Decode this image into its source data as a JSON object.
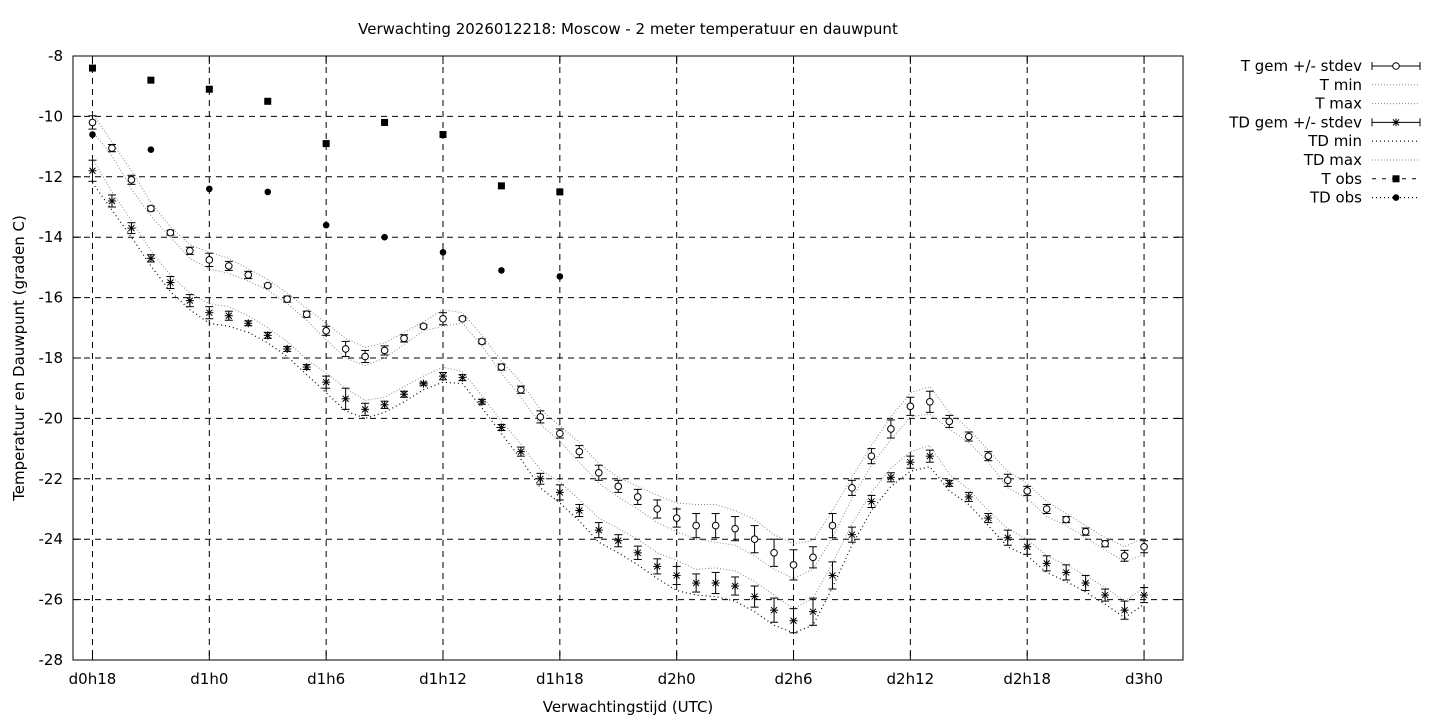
{
  "chart_data": {
    "type": "line",
    "title": "Verwachting 2026012218: Moscow - 2 meter temperatuur en dauwpunt",
    "xlabel": "Verwachtingstijd (UTC)",
    "ylabel": "Temperatuur en Dauwpunt (graden C)",
    "ylim": [
      -28,
      -8
    ],
    "xlim": [
      -1,
      56
    ],
    "yticks": [
      -8,
      -10,
      -12,
      -14,
      -16,
      -18,
      -20,
      -22,
      -24,
      -26,
      -28
    ],
    "xticks": [
      {
        "x": 0,
        "label": "d0h18"
      },
      {
        "x": 6,
        "label": "d1h0"
      },
      {
        "x": 12,
        "label": "d1h6"
      },
      {
        "x": 18,
        "label": "d1h12"
      },
      {
        "x": 24,
        "label": "d1h18"
      },
      {
        "x": 30,
        "label": "d2h0"
      },
      {
        "x": 36,
        "label": "d2h6"
      },
      {
        "x": 42,
        "label": "d2h12"
      },
      {
        "x": 48,
        "label": "d2h18"
      },
      {
        "x": 54,
        "label": "d3h0"
      }
    ],
    "grid": true,
    "legend_position": "outside-top-right",
    "legend": [
      {
        "label": "T gem +/- stdev",
        "marker": "circle",
        "style": "errorbar"
      },
      {
        "label": "T min",
        "marker": "none",
        "style": "dotted"
      },
      {
        "label": "T max",
        "marker": "none",
        "style": "dotted"
      },
      {
        "label": "TD gem +/- stdev",
        "marker": "star",
        "style": "errorbar"
      },
      {
        "label": "TD min",
        "marker": "none",
        "style": "dotted-dark"
      },
      {
        "label": "TD max",
        "marker": "none",
        "style": "dotted"
      },
      {
        "label": "T obs",
        "marker": "square",
        "style": "dashed"
      },
      {
        "label": "TD obs",
        "marker": "dot",
        "style": "dotted-dark"
      }
    ],
    "x": [
      0,
      1,
      2,
      3,
      4,
      5,
      6,
      7,
      8,
      9,
      10,
      11,
      12,
      13,
      14,
      15,
      16,
      17,
      18,
      19,
      20,
      21,
      22,
      23,
      24,
      25,
      26,
      27,
      28,
      29,
      30,
      31,
      32,
      33,
      34,
      35,
      36,
      37,
      38,
      39,
      40,
      41,
      42,
      43,
      44,
      45,
      46,
      47,
      48,
      49,
      50,
      51,
      52,
      53,
      54
    ],
    "series": [
      {
        "name": "T gem +/- stdev",
        "values": [
          -10.2,
          -11.05,
          -12.1,
          -13.05,
          -13.85,
          -14.45,
          -14.75,
          -14.95,
          -15.25,
          -15.6,
          -16.05,
          -16.55,
          -17.1,
          -17.7,
          -17.95,
          -17.75,
          -17.35,
          -16.95,
          -16.7,
          -16.7,
          -17.45,
          -18.3,
          -19.05,
          -19.95,
          -20.5,
          -21.1,
          -21.8,
          -22.25,
          -22.6,
          -23.0,
          -23.3,
          -23.55,
          -23.55,
          -23.65,
          -24.0,
          -24.45,
          -24.85,
          -24.6,
          -23.55,
          -22.3,
          -21.25,
          -20.35,
          -19.6,
          -19.45,
          -20.1,
          -20.6,
          -21.25,
          -22.05,
          -22.4,
          -23.0,
          -23.35,
          -23.75,
          -24.15,
          -24.55,
          -24.25
        ],
        "stdev": [
          0.22,
          0.12,
          0.15,
          0.08,
          0.08,
          0.12,
          0.22,
          0.15,
          0.12,
          0.05,
          0.1,
          0.1,
          0.15,
          0.25,
          0.2,
          0.15,
          0.12,
          0.05,
          0.2,
          0.05,
          0.08,
          0.1,
          0.12,
          0.2,
          0.15,
          0.2,
          0.25,
          0.2,
          0.25,
          0.3,
          0.3,
          0.4,
          0.4,
          0.4,
          0.45,
          0.45,
          0.5,
          0.35,
          0.4,
          0.25,
          0.25,
          0.3,
          0.3,
          0.35,
          0.2,
          0.15,
          0.15,
          0.2,
          0.15,
          0.15,
          0.1,
          0.12,
          0.1,
          0.18,
          0.2
        ]
      },
      {
        "name": "T min",
        "values": [
          -10.5,
          -11.3,
          -12.4,
          -13.3,
          -14.0,
          -14.7,
          -15.05,
          -15.2,
          -15.45,
          -15.75,
          -16.2,
          -16.75,
          -17.4,
          -18.0,
          -18.25,
          -18.0,
          -17.55,
          -17.1,
          -16.95,
          -16.85,
          -17.6,
          -18.5,
          -19.3,
          -20.2,
          -20.75,
          -21.45,
          -22.15,
          -22.6,
          -23.0,
          -23.45,
          -23.75,
          -24.0,
          -24.1,
          -24.2,
          -24.55,
          -25.0,
          -25.3,
          -25.0,
          -23.95,
          -22.65,
          -21.55,
          -20.7,
          -19.95,
          -19.85,
          -20.35,
          -20.8,
          -21.45,
          -22.3,
          -22.65,
          -23.25,
          -23.55,
          -23.95,
          -24.35,
          -24.75,
          -24.5
        ]
      },
      {
        "name": "T max",
        "values": [
          -9.9,
          -10.85,
          -11.8,
          -12.85,
          -13.65,
          -14.25,
          -14.5,
          -14.7,
          -15.05,
          -15.4,
          -15.85,
          -16.35,
          -16.85,
          -17.35,
          -17.65,
          -17.5,
          -17.15,
          -16.8,
          -16.4,
          -16.5,
          -17.25,
          -18.1,
          -18.8,
          -19.7,
          -20.25,
          -20.8,
          -21.5,
          -21.95,
          -22.25,
          -22.55,
          -22.8,
          -22.85,
          -22.85,
          -23.05,
          -23.35,
          -23.85,
          -24.15,
          -24.05,
          -23.05,
          -21.95,
          -20.9,
          -19.95,
          -19.15,
          -18.95,
          -19.8,
          -20.35,
          -21.05,
          -21.75,
          -22.15,
          -22.75,
          -23.15,
          -23.55,
          -23.95,
          -24.25,
          -23.95
        ]
      },
      {
        "name": "TD gem +/- stdev",
        "values": [
          -11.8,
          -12.8,
          -13.7,
          -14.7,
          -15.5,
          -16.1,
          -16.5,
          -16.6,
          -16.85,
          -17.25,
          -17.7,
          -18.3,
          -18.8,
          -19.35,
          -19.7,
          -19.55,
          -19.2,
          -18.85,
          -18.6,
          -18.65,
          -19.45,
          -20.3,
          -21.1,
          -22.0,
          -22.45,
          -23.05,
          -23.7,
          -24.05,
          -24.45,
          -24.9,
          -25.2,
          -25.45,
          -25.45,
          -25.55,
          -25.9,
          -26.35,
          -26.7,
          -26.4,
          -25.2,
          -23.85,
          -22.75,
          -21.95,
          -21.45,
          -21.25,
          -22.15,
          -22.6,
          -23.3,
          -23.95,
          -24.25,
          -24.8,
          -25.1,
          -25.45,
          -25.85,
          -26.35,
          -25.85
        ]
      },
      {
        "name": "TD min",
        "values": [
          -12.2,
          -13.1,
          -14.0,
          -14.95,
          -15.8,
          -16.4,
          -16.85,
          -16.95,
          -17.15,
          -17.5,
          -17.95,
          -18.55,
          -19.15,
          -19.75,
          -20.0,
          -19.8,
          -19.45,
          -19.05,
          -18.8,
          -18.85,
          -19.65,
          -20.5,
          -21.35,
          -22.3,
          -22.8,
          -23.4,
          -24.1,
          -24.45,
          -24.85,
          -25.3,
          -25.7,
          -25.85,
          -25.9,
          -26.05,
          -26.4,
          -26.85,
          -27.1,
          -26.85,
          -25.6,
          -24.2,
          -23.05,
          -22.25,
          -21.75,
          -21.6,
          -22.4,
          -22.85,
          -23.55,
          -24.25,
          -24.55,
          -25.1,
          -25.4,
          -25.75,
          -26.15,
          -26.6,
          -26.15
        ]
      },
      {
        "name": "TD max",
        "values": [
          -11.4,
          -12.5,
          -13.45,
          -14.45,
          -15.25,
          -15.85,
          -16.2,
          -16.3,
          -16.6,
          -17.0,
          -17.45,
          -18.05,
          -18.5,
          -19.0,
          -19.4,
          -19.3,
          -18.95,
          -18.6,
          -18.3,
          -18.45,
          -19.25,
          -20.1,
          -20.85,
          -21.7,
          -22.1,
          -22.7,
          -23.3,
          -23.65,
          -24.0,
          -24.45,
          -24.7,
          -25.0,
          -24.95,
          -25.05,
          -25.4,
          -25.85,
          -26.3,
          -25.95,
          -24.8,
          -23.5,
          -22.45,
          -21.65,
          -21.1,
          -20.9,
          -21.85,
          -22.35,
          -23.05,
          -23.65,
          -24.0,
          -24.55,
          -24.85,
          -25.2,
          -25.6,
          -26.05,
          -25.6
        ]
      },
      {
        "name": "TD gem stdev",
        "values": [
          0.35,
          0.2,
          0.18,
          0.12,
          0.2,
          0.2,
          0.2,
          0.15,
          0.08,
          0.1,
          0.08,
          0.08,
          0.2,
          0.35,
          0.2,
          0.12,
          0.1,
          0.05,
          0.12,
          0.1,
          0.08,
          0.1,
          0.15,
          0.18,
          0.25,
          0.2,
          0.25,
          0.2,
          0.22,
          0.25,
          0.3,
          0.3,
          0.35,
          0.3,
          0.35,
          0.4,
          0.4,
          0.45,
          0.45,
          0.25,
          0.2,
          0.15,
          0.2,
          0.2,
          0.1,
          0.15,
          0.15,
          0.25,
          0.25,
          0.25,
          0.25,
          0.25,
          0.2,
          0.3,
          0.25
        ]
      },
      {
        "name": "T obs",
        "x": [
          0,
          3,
          6,
          9,
          12,
          15,
          18,
          21,
          24
        ],
        "values": [
          -8.4,
          -8.8,
          -9.1,
          -9.5,
          -10.9,
          -10.2,
          -10.6,
          -12.3,
          -12.5
        ]
      },
      {
        "name": "TD obs",
        "x": [
          0,
          3,
          6,
          9,
          12,
          15,
          18,
          21,
          24
        ],
        "values": [
          -10.6,
          -11.1,
          -12.4,
          -12.5,
          -13.6,
          -14.0,
          -14.5,
          -15.1,
          -15.3
        ]
      }
    ]
  }
}
